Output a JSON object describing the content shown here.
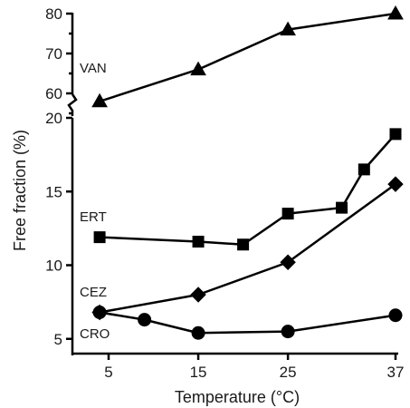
{
  "chart_data": {
    "type": "line",
    "xlabel": "Temperature (°C)",
    "ylabel": "Free fraction (%)",
    "xlim": [
      2,
      39
    ],
    "x_ticks": [
      5,
      15,
      25,
      37
    ],
    "y_axis_break": true,
    "y_upper": {
      "range": [
        55,
        80
      ],
      "ticks": [
        60,
        70,
        80
      ]
    },
    "y_lower": {
      "range": [
        4,
        20
      ],
      "ticks": [
        5,
        10,
        15,
        20
      ]
    },
    "grid": false,
    "legend": "none; series labelled inline",
    "series": [
      {
        "name": "VAN",
        "marker": "triangle",
        "panel": "upper",
        "points": [
          [
            4,
            58
          ],
          [
            15,
            66
          ],
          [
            25,
            76
          ],
          [
            37,
            80
          ]
        ]
      },
      {
        "name": "ERT",
        "marker": "square",
        "panel": "lower",
        "points": [
          [
            4,
            11.9
          ],
          [
            15,
            11.6
          ],
          [
            20,
            11.4
          ],
          [
            25,
            13.5
          ],
          [
            31,
            13.9
          ],
          [
            33.5,
            16.5
          ],
          [
            37,
            18.9
          ]
        ]
      },
      {
        "name": "CEZ",
        "marker": "diamond",
        "panel": "lower",
        "points": [
          [
            4,
            6.8
          ],
          [
            15,
            8.0
          ],
          [
            25,
            10.2
          ],
          [
            37,
            15.5
          ]
        ]
      },
      {
        "name": "CRO",
        "marker": "circle",
        "panel": "lower",
        "points": [
          [
            4,
            6.8
          ],
          [
            9,
            6.3
          ],
          [
            15,
            5.4
          ],
          [
            25,
            5.5
          ],
          [
            37,
            6.6
          ]
        ]
      }
    ]
  }
}
